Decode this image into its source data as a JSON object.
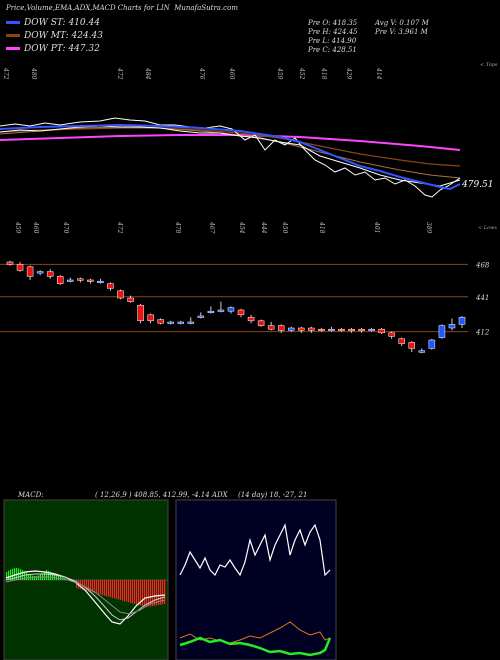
{
  "header": {
    "title": "Price,Volume,EMA,ADX,MACD Charts for LIN",
    "site": "MunafaSutra.com"
  },
  "legend": [
    {
      "label": "DOW ST: 410.44",
      "color": "#3355ff"
    },
    {
      "label": "DOW MT: 424.43",
      "color": "#8b4513"
    },
    {
      "label": "DOW PT: 447.32",
      "color": "#ff44ff"
    }
  ],
  "stats": {
    "prev_open": "Pre   O: 418.35",
    "prev_high": "Pre   H: 424.45",
    "prev_low": "Pre   L: 414.90",
    "prev_close": "Pre   C: 428.51",
    "avg_volume": "Avg V: 0.107 M",
    "prev_volume": "Pre   V: 3.961 M"
  },
  "upper_panel": {
    "top_label": "< Tops",
    "lower_label": "< Lows",
    "last_value_label": "479.51",
    "top_tick_labels": [
      "472",
      "480",
      "472",
      "484",
      "476",
      "460",
      "459",
      "452",
      "418",
      "429",
      "414"
    ],
    "low_tick_labels": [
      "459",
      "460",
      "470",
      "472",
      "478",
      "467",
      "454",
      "444",
      "450",
      "418",
      "401",
      "389"
    ]
  },
  "candle_panel": {
    "levels": [
      "468",
      "441",
      "412"
    ]
  },
  "macd": {
    "label": "MACD:",
    "values": "( 12,26,9 ) 408.85, 412.99, -4.14 ADX",
    "adx_values": "(14 day) 18, -27, 21"
  },
  "colors": {
    "up_candle": "#2255ff",
    "down_candle": "#ee1111",
    "macd_bg": "#003300",
    "adx_bg": "#000022",
    "level_line": "#8b4513"
  },
  "chart_data": [
    {
      "type": "line",
      "title": "",
      "series": [
        {
          "name": "DOW ST",
          "last": 410.44
        },
        {
          "name": "DOW MT",
          "last": 424.43
        },
        {
          "name": "DOW PT",
          "last": 447.32
        }
      ]
    },
    {
      "type": "candlestick",
      "levels": [
        468,
        441,
        412
      ],
      "candles": [
        {
          "o": 470,
          "c": 468,
          "h": 471,
          "l": 467,
          "up": false
        },
        {
          "o": 468,
          "c": 463,
          "h": 470,
          "l": 462,
          "up": false
        },
        {
          "o": 466,
          "c": 458,
          "h": 467,
          "l": 455,
          "up": false
        },
        {
          "o": 461,
          "c": 462,
          "h": 463,
          "l": 459,
          "up": true
        },
        {
          "o": 462,
          "c": 458,
          "h": 464,
          "l": 456,
          "up": false
        },
        {
          "o": 458,
          "c": 452,
          "h": 459,
          "l": 451,
          "up": false
        },
        {
          "o": 455,
          "c": 455,
          "h": 457,
          "l": 453,
          "up": true
        },
        {
          "o": 456,
          "c": 455,
          "h": 457,
          "l": 453,
          "up": false
        },
        {
          "o": 455,
          "c": 454,
          "h": 456,
          "l": 452,
          "up": false
        },
        {
          "o": 454,
          "c": 454,
          "h": 456,
          "l": 452,
          "up": true
        },
        {
          "o": 452,
          "c": 448,
          "h": 453,
          "l": 446,
          "up": false
        },
        {
          "o": 446,
          "c": 440,
          "h": 447,
          "l": 439,
          "up": false
        },
        {
          "o": 440,
          "c": 437,
          "h": 442,
          "l": 436,
          "up": false
        },
        {
          "o": 434,
          "c": 421,
          "h": 435,
          "l": 419,
          "up": false
        },
        {
          "o": 426,
          "c": 421,
          "h": 427,
          "l": 419,
          "up": false
        },
        {
          "o": 422,
          "c": 419,
          "h": 423,
          "l": 418,
          "up": false
        },
        {
          "o": 419,
          "c": 420,
          "h": 421,
          "l": 418,
          "up": true
        },
        {
          "o": 419,
          "c": 420,
          "h": 421,
          "l": 418,
          "up": true
        },
        {
          "o": 419,
          "c": 420,
          "h": 424,
          "l": 418,
          "up": true
        },
        {
          "o": 424,
          "c": 425,
          "h": 428,
          "l": 423,
          "up": true
        },
        {
          "o": 428,
          "c": 429,
          "h": 433,
          "l": 427,
          "up": true
        },
        {
          "o": 430,
          "c": 430,
          "h": 437,
          "l": 428,
          "up": true
        },
        {
          "o": 429,
          "c": 432,
          "h": 433,
          "l": 427,
          "up": true
        },
        {
          "o": 430,
          "c": 426,
          "h": 431,
          "l": 424,
          "up": false
        },
        {
          "o": 424,
          "c": 421,
          "h": 426,
          "l": 419,
          "up": false
        },
        {
          "o": 421,
          "c": 417,
          "h": 422,
          "l": 416,
          "up": false
        },
        {
          "o": 417,
          "c": 414,
          "h": 420,
          "l": 413,
          "up": false
        },
        {
          "o": 417,
          "c": 413,
          "h": 418,
          "l": 411,
          "up": false
        },
        {
          "o": 413,
          "c": 415,
          "h": 416,
          "l": 412,
          "up": true
        },
        {
          "o": 415,
          "c": 413,
          "h": 416,
          "l": 411,
          "up": false
        },
        {
          "o": 415,
          "c": 413,
          "h": 416,
          "l": 411,
          "up": false
        },
        {
          "o": 414,
          "c": 414,
          "h": 415,
          "l": 412,
          "up": false
        },
        {
          "o": 414,
          "c": 413,
          "h": 416,
          "l": 412,
          "up": true
        },
        {
          "o": 414,
          "c": 413,
          "h": 415,
          "l": 412,
          "up": false
        },
        {
          "o": 414,
          "c": 413,
          "h": 415,
          "l": 411,
          "up": false
        },
        {
          "o": 414,
          "c": 413,
          "h": 415,
          "l": 411,
          "up": false
        },
        {
          "o": 414,
          "c": 413,
          "h": 415,
          "l": 412,
          "up": true
        },
        {
          "o": 414,
          "c": 411,
          "h": 415,
          "l": 410,
          "up": false
        },
        {
          "o": 411,
          "c": 408,
          "h": 412,
          "l": 406,
          "up": false
        },
        {
          "o": 406,
          "c": 402,
          "h": 407,
          "l": 400,
          "up": false
        },
        {
          "o": 403,
          "c": 398,
          "h": 404,
          "l": 395,
          "up": false
        },
        {
          "o": 396,
          "c": 396,
          "h": 398,
          "l": 394,
          "up": true
        },
        {
          "o": 398,
          "c": 405,
          "h": 406,
          "l": 397,
          "up": true
        },
        {
          "o": 407,
          "c": 417,
          "h": 418,
          "l": 406,
          "up": true
        },
        {
          "o": 415,
          "c": 418,
          "h": 423,
          "l": 413,
          "up": true
        },
        {
          "o": 418,
          "c": 424,
          "h": 425,
          "l": 415,
          "up": true
        }
      ]
    },
    {
      "type": "bar",
      "series": [
        {
          "name": "MACD histogram"
        }
      ]
    },
    {
      "type": "line",
      "series": [
        {
          "name": "ADX",
          "last": 21
        }
      ]
    }
  ]
}
